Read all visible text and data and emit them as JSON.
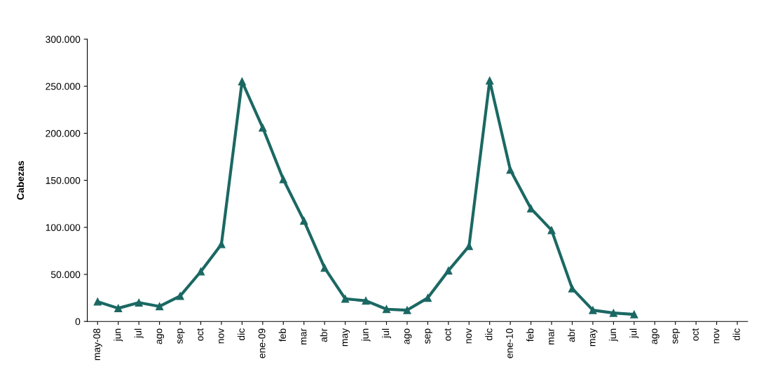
{
  "chart_data": {
    "type": "line",
    "ylabel": "Cabezas",
    "categories": [
      "may-08",
      "jun",
      "jul",
      "ago",
      "sep",
      "oct",
      "nov",
      "dic",
      "ene-09",
      "feb",
      "mar",
      "abr",
      "may",
      "jun",
      "jul",
      "ago",
      "sep",
      "oct",
      "nov",
      "dic",
      "ene-10",
      "feb",
      "mar",
      "abr",
      "may",
      "jun",
      "jul",
      "ago",
      "sep",
      "oct",
      "nov",
      "dic"
    ],
    "series": [
      {
        "color": "#1b6863",
        "values": [
          21000,
          14000,
          20000,
          16000,
          27000,
          53000,
          82000,
          255000,
          206000,
          151000,
          107000,
          57000,
          24000,
          22000,
          13000,
          12000,
          25000,
          54000,
          80000,
          256000,
          161000,
          120000,
          97000,
          35000,
          12000,
          9000,
          7500,
          null,
          null,
          null,
          null,
          null
        ]
      }
    ],
    "ylim": [
      0,
      300000
    ],
    "yticks": [
      {
        "value": 0,
        "label": "0"
      },
      {
        "value": 50000,
        "label": "50.000"
      },
      {
        "value": 100000,
        "label": "100.000"
      },
      {
        "value": 150000,
        "label": "150.000"
      },
      {
        "value": 200000,
        "label": "200.000"
      },
      {
        "value": 250000,
        "label": "250.000"
      },
      {
        "value": 300000,
        "label": "300.000"
      }
    ],
    "marker": "triangle",
    "line_style": "solid",
    "grid": false,
    "legend": false
  }
}
